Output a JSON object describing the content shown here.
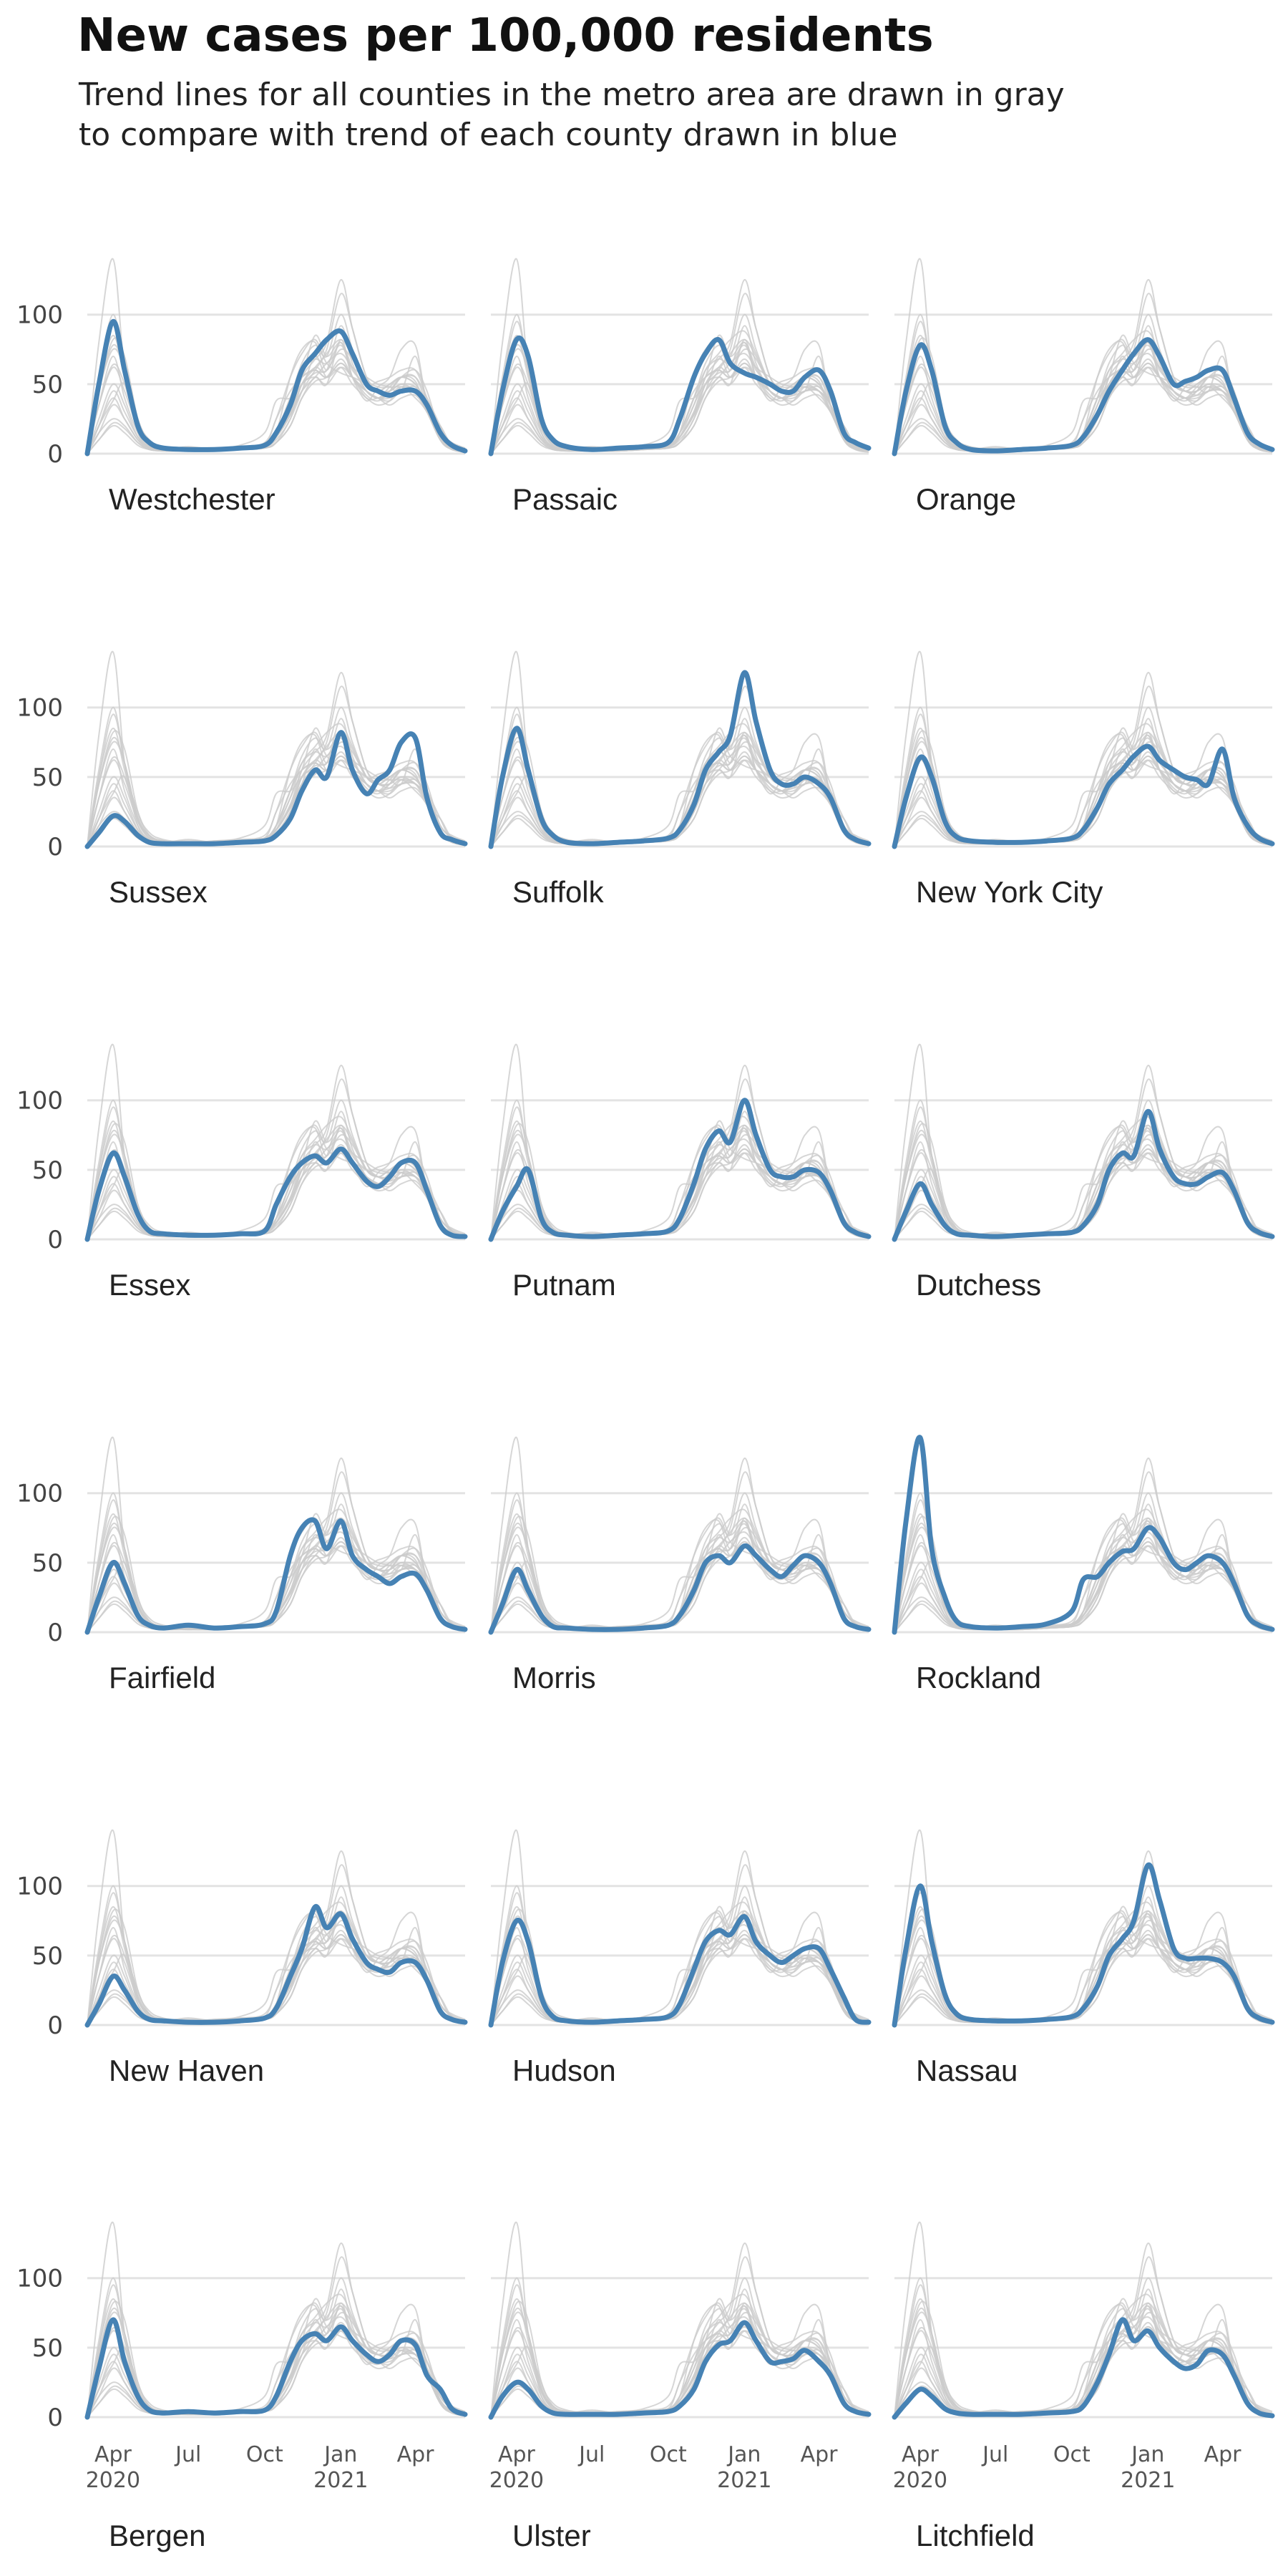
{
  "title": "New cases per 100,000 residents",
  "subtitle_lines": [
    "Trend lines for all counties in the metro area are drawn in gray",
    "to compare with trend of each county drawn in blue"
  ],
  "colors": {
    "highlight": "#4682b4",
    "context": "#cccccc",
    "grid": "#e3e3e3",
    "text": "#333333"
  },
  "chart_data": {
    "type": "line",
    "layout": "small multiples, 3 columns x 6 rows",
    "ylim": [
      0,
      140
    ],
    "yticks": [
      0,
      50,
      100
    ],
    "xlim": [
      "2020-03-01",
      "2021-05-31"
    ],
    "xticks": [
      {
        "date": "2020-04-01",
        "label": "Apr",
        "year": "2020"
      },
      {
        "date": "2020-07-01",
        "label": "Jul",
        "year": ""
      },
      {
        "date": "2020-10-01",
        "label": "Oct",
        "year": ""
      },
      {
        "date": "2021-01-01",
        "label": "Jan",
        "year": "2021"
      },
      {
        "date": "2021-04-01",
        "label": "Apr",
        "year": ""
      }
    ],
    "grid": true,
    "legend": "none",
    "dates": [
      "2020-03-01",
      "2020-03-15",
      "2020-04-01",
      "2020-04-15",
      "2020-05-01",
      "2020-05-15",
      "2020-06-01",
      "2020-07-01",
      "2020-08-01",
      "2020-09-01",
      "2020-10-01",
      "2020-10-15",
      "2020-11-01",
      "2020-11-15",
      "2020-12-01",
      "2020-12-15",
      "2021-01-01",
      "2021-01-15",
      "2021-02-01",
      "2021-02-15",
      "2021-03-01",
      "2021-03-15",
      "2021-04-01",
      "2021-04-15",
      "2021-05-01",
      "2021-05-15",
      "2021-05-31"
    ],
    "series": [
      {
        "name": "Westchester",
        "values": [
          0,
          50,
          95,
          60,
          20,
          8,
          4,
          3,
          3,
          4,
          6,
          15,
          35,
          60,
          72,
          82,
          88,
          72,
          50,
          45,
          42,
          45,
          45,
          35,
          15,
          6,
          2
        ]
      },
      {
        "name": "Passaic",
        "values": [
          0,
          45,
          82,
          70,
          25,
          10,
          5,
          3,
          4,
          5,
          8,
          25,
          55,
          72,
          82,
          65,
          58,
          55,
          50,
          45,
          45,
          55,
          60,
          45,
          15,
          8,
          4
        ]
      },
      {
        "name": "Orange",
        "values": [
          0,
          45,
          78,
          60,
          20,
          8,
          3,
          2,
          3,
          4,
          6,
          12,
          28,
          45,
          60,
          72,
          82,
          70,
          50,
          52,
          55,
          60,
          60,
          40,
          15,
          7,
          3
        ]
      },
      {
        "name": "Sussex",
        "values": [
          0,
          10,
          22,
          18,
          8,
          3,
          2,
          2,
          2,
          3,
          4,
          8,
          20,
          40,
          55,
          50,
          82,
          55,
          38,
          48,
          55,
          75,
          78,
          35,
          10,
          5,
          2
        ]
      },
      {
        "name": "Suffolk",
        "values": [
          0,
          50,
          85,
          55,
          20,
          8,
          3,
          2,
          3,
          4,
          6,
          12,
          30,
          55,
          68,
          80,
          125,
          90,
          55,
          45,
          45,
          50,
          45,
          35,
          12,
          5,
          2
        ]
      },
      {
        "name": "New York City",
        "values": [
          0,
          35,
          64,
          50,
          18,
          7,
          4,
          3,
          3,
          4,
          6,
          12,
          28,
          45,
          55,
          65,
          72,
          62,
          55,
          50,
          48,
          45,
          70,
          35,
          15,
          6,
          2
        ]
      },
      {
        "name": "Essex",
        "values": [
          0,
          35,
          62,
          45,
          18,
          6,
          4,
          3,
          3,
          4,
          6,
          25,
          45,
          55,
          60,
          55,
          65,
          55,
          42,
          38,
          45,
          55,
          55,
          35,
          10,
          3,
          2
        ]
      },
      {
        "name": "Putnam",
        "values": [
          0,
          20,
          38,
          50,
          15,
          5,
          3,
          2,
          3,
          4,
          6,
          15,
          40,
          65,
          78,
          70,
          100,
          75,
          50,
          45,
          45,
          50,
          48,
          35,
          12,
          5,
          2
        ]
      },
      {
        "name": "Dutchess",
        "values": [
          0,
          20,
          40,
          25,
          10,
          4,
          3,
          2,
          3,
          4,
          5,
          10,
          25,
          50,
          62,
          60,
          92,
          65,
          45,
          40,
          40,
          45,
          48,
          35,
          12,
          5,
          2
        ]
      },
      {
        "name": "Fairfield",
        "values": [
          0,
          25,
          50,
          35,
          12,
          5,
          3,
          5,
          3,
          4,
          6,
          15,
          55,
          75,
          80,
          60,
          80,
          55,
          45,
          40,
          35,
          40,
          42,
          30,
          10,
          4,
          2
        ]
      },
      {
        "name": "Morris",
        "values": [
          0,
          20,
          45,
          30,
          12,
          4,
          3,
          2,
          2,
          3,
          5,
          12,
          30,
          50,
          55,
          50,
          62,
          55,
          45,
          40,
          48,
          55,
          50,
          35,
          10,
          4,
          2
        ]
      },
      {
        "name": "Rockland",
        "values": [
          0,
          80,
          140,
          60,
          25,
          8,
          4,
          3,
          4,
          6,
          15,
          38,
          40,
          50,
          58,
          60,
          75,
          68,
          50,
          45,
          50,
          55,
          50,
          35,
          12,
          5,
          2
        ]
      },
      {
        "name": "New Haven",
        "values": [
          0,
          15,
          35,
          25,
          10,
          4,
          3,
          2,
          2,
          3,
          5,
          12,
          35,
          55,
          85,
          70,
          80,
          62,
          45,
          40,
          38,
          45,
          45,
          32,
          10,
          4,
          2
        ]
      },
      {
        "name": "Hudson",
        "values": [
          0,
          45,
          75,
          60,
          20,
          6,
          3,
          2,
          3,
          4,
          6,
          15,
          40,
          60,
          68,
          65,
          78,
          60,
          50,
          45,
          50,
          55,
          55,
          40,
          20,
          4,
          2
        ]
      },
      {
        "name": "Nassau",
        "values": [
          0,
          55,
          100,
          60,
          22,
          8,
          4,
          3,
          3,
          4,
          6,
          12,
          28,
          50,
          62,
          75,
          115,
          90,
          55,
          48,
          48,
          48,
          45,
          35,
          12,
          5,
          2
        ]
      },
      {
        "name": "Bergen",
        "values": [
          0,
          35,
          70,
          40,
          15,
          5,
          3,
          4,
          3,
          4,
          5,
          15,
          40,
          55,
          60,
          55,
          65,
          55,
          45,
          40,
          45,
          55,
          52,
          30,
          20,
          6,
          2
        ]
      },
      {
        "name": "Ulster",
        "values": [
          0,
          15,
          25,
          20,
          8,
          3,
          2,
          2,
          2,
          3,
          4,
          8,
          20,
          40,
          52,
          55,
          68,
          55,
          40,
          40,
          42,
          48,
          40,
          30,
          10,
          4,
          2
        ]
      },
      {
        "name": "Litchfield",
        "values": [
          0,
          10,
          20,
          15,
          6,
          3,
          2,
          2,
          2,
          3,
          4,
          8,
          25,
          45,
          70,
          55,
          62,
          50,
          40,
          35,
          38,
          48,
          45,
          30,
          10,
          3,
          1
        ]
      }
    ]
  }
}
